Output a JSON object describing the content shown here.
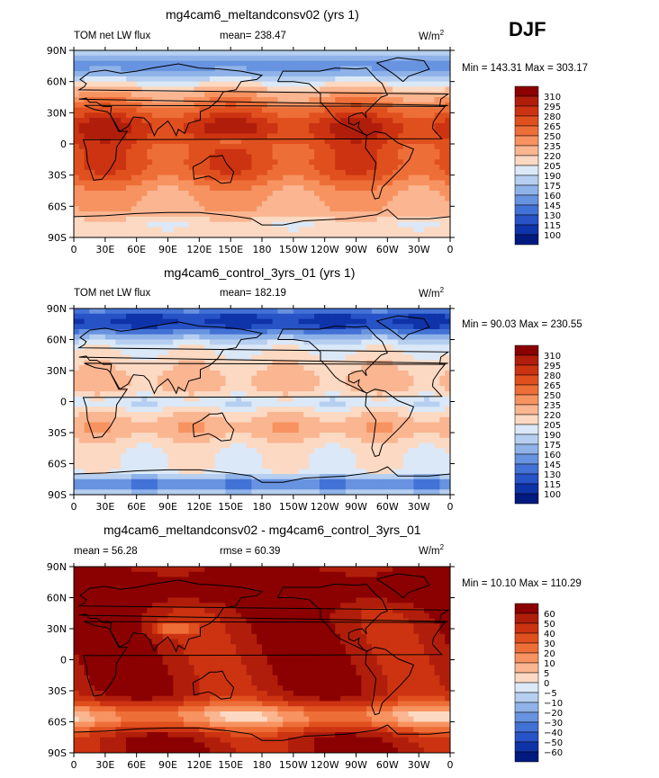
{
  "season": "DJF",
  "panels": [
    {
      "title": "mg4cam6_meltandconsv02 (yrs 1)",
      "left_label": "TOM net LW flux",
      "stat_label": "mean=",
      "stat_value": "238.47",
      "units": "W/m",
      "units_sup": "2",
      "min_label": "Min =",
      "min_value": "143.31",
      "max_label": "Max =",
      "max_value": "303.17"
    },
    {
      "title": "mg4cam6_control_3yrs_01 (yrs 1)",
      "left_label": "TOM net LW flux",
      "stat_label": "mean=",
      "stat_value": "182.19",
      "units": "W/m",
      "units_sup": "2",
      "min_label": "Min =",
      "min_value": "90.03",
      "max_label": "Max =",
      "max_value": "230.55"
    },
    {
      "title": "mg4cam6_meltandconsv02 - mg4cam6_control_3yrs_01",
      "left_label": "mean =",
      "left_value": "56.28",
      "stat_label": "rmse =",
      "stat_value": "60.39",
      "units": "W/m",
      "units_sup": "2",
      "min_label": "Min =",
      "min_value": "10.10",
      "max_label": "Max =",
      "max_value": "110.29"
    }
  ],
  "chart_data": [
    {
      "type": "heatmap",
      "title": "mg4cam6_meltandconsv02 (yrs 1)",
      "x_ticks": [
        "0",
        "30E",
        "60E",
        "90E",
        "120E",
        "150E",
        "180",
        "150W",
        "120W",
        "90W",
        "60W",
        "30W",
        "0"
      ],
      "y_ticks": [
        "90N",
        "60N",
        "30N",
        "0",
        "30S",
        "60S",
        "90S"
      ],
      "colorbar_levels": [
        310,
        295,
        280,
        265,
        250,
        235,
        220,
        205,
        190,
        175,
        160,
        145,
        130,
        115,
        100
      ],
      "colorbar_colors": [
        "#8b0000",
        "#b01e0b",
        "#cc3311",
        "#e0501e",
        "#ee6e38",
        "#f79360",
        "#fab591",
        "#fcd9c2",
        "#dbe8f7",
        "#b6cff0",
        "#8fb3e8",
        "#6893e0",
        "#4372d6",
        "#2753c7",
        "#0f33a8",
        "#001a80"
      ],
      "mean": 238.47,
      "min": 143.31,
      "max": 303.17
    },
    {
      "type": "heatmap",
      "title": "mg4cam6_control_3yrs_01 (yrs 1)",
      "x_ticks": [
        "0",
        "30E",
        "60E",
        "90E",
        "120E",
        "150E",
        "180",
        "150W",
        "120W",
        "90W",
        "60W",
        "30W",
        "0"
      ],
      "y_ticks": [
        "90N",
        "60N",
        "30N",
        "0",
        "30S",
        "60S",
        "90S"
      ],
      "colorbar_levels": [
        310,
        295,
        280,
        265,
        250,
        235,
        220,
        205,
        190,
        175,
        160,
        145,
        130,
        115,
        100
      ],
      "colorbar_colors": [
        "#8b0000",
        "#b01e0b",
        "#cc3311",
        "#e0501e",
        "#ee6e38",
        "#f79360",
        "#fab591",
        "#fcd9c2",
        "#dbe8f7",
        "#b6cff0",
        "#8fb3e8",
        "#6893e0",
        "#4372d6",
        "#2753c7",
        "#0f33a8",
        "#001a80"
      ],
      "mean": 182.19,
      "min": 90.03,
      "max": 230.55
    },
    {
      "type": "heatmap",
      "title": "mg4cam6_meltandconsv02 - mg4cam6_control_3yrs_01",
      "x_ticks": [
        "0",
        "30E",
        "60E",
        "90E",
        "120E",
        "150E",
        "180",
        "150W",
        "120W",
        "90W",
        "60W",
        "30W",
        "0"
      ],
      "y_ticks": [
        "90N",
        "60N",
        "30N",
        "0",
        "30S",
        "60S",
        "90S"
      ],
      "colorbar_levels": [
        60,
        50,
        40,
        30,
        20,
        10,
        5,
        0,
        -5,
        -10,
        -20,
        -30,
        -40,
        -50,
        -60
      ],
      "colorbar_colors": [
        "#8b0000",
        "#b01e0b",
        "#cc3311",
        "#e0501e",
        "#ee6e38",
        "#f79360",
        "#fab591",
        "#fcd9c2",
        "#dbe8f7",
        "#b6cff0",
        "#8fb3e8",
        "#6893e0",
        "#4372d6",
        "#2753c7",
        "#0f33a8",
        "#001a80"
      ],
      "mean": 56.28,
      "rmse": 60.39,
      "min": 10.1,
      "max": 110.29
    }
  ]
}
